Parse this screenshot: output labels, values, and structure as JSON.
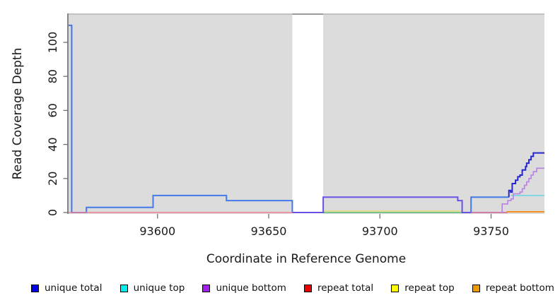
{
  "figure": {
    "bg": "#ffffff",
    "panel_bg": "#dcdcdc",
    "panel_top_line": "#c2c2c2",
    "gap_top_line": "#9b9b9b",
    "axis_line_color": "#444444",
    "tick_color": "#707070",
    "label_color": "#1a1a1a"
  },
  "chart_data": {
    "type": "line",
    "title": "",
    "xlabel": "Coordinate in Reference Genome",
    "ylabel": "Read Coverage Depth",
    "xlim": [
      93560,
      93774
    ],
    "ylim": [
      0,
      117
    ],
    "xticks": [
      93600,
      93650,
      93700,
      93750
    ],
    "yticks": [
      0,
      20,
      40,
      60,
      80,
      100
    ],
    "grid": false,
    "legend_position": "bottom",
    "mask_region": {
      "x0": 93660.6,
      "x1": 93674.5
    },
    "legend": [
      {
        "label": "unique total",
        "color": "#0000EE"
      },
      {
        "label": "unique top",
        "color": "#00EEEE"
      },
      {
        "label": "unique bottom",
        "color": "#A020F0"
      },
      {
        "label": "repeat total",
        "color": "#EE0000"
      },
      {
        "label": "repeat top",
        "color": "#FFFF00"
      },
      {
        "label": "repeat bottom",
        "color": "#EE9A00"
      }
    ],
    "series": [
      {
        "name": "unique-total-left",
        "color": "#4379E8",
        "width": 2,
        "points": [
          [
            93560,
            110
          ],
          [
            93561.4,
            110
          ],
          [
            93561.4,
            0
          ],
          [
            93568,
            0
          ],
          [
            93568,
            3
          ],
          [
            93598,
            3
          ],
          [
            93598,
            10
          ],
          [
            93631,
            10
          ],
          [
            93631,
            7
          ],
          [
            93660.6,
            7
          ],
          [
            93660.6,
            0
          ],
          [
            93675,
            0
          ]
        ]
      },
      {
        "name": "repeat-total-left",
        "color": "#ED8092",
        "width": 1.6,
        "points": [
          [
            93560,
            0
          ],
          [
            93660.6,
            0
          ]
        ]
      },
      {
        "name": "repeat-top-mid",
        "color": "#E6DC7E",
        "width": 1.5,
        "points": [
          [
            93674.5,
            0.9
          ],
          [
            93737,
            0.9
          ]
        ]
      },
      {
        "name": "overlap-baseline-green",
        "color": "#59BD6F",
        "width": 1.6,
        "points": [
          [
            93674.5,
            0
          ],
          [
            93737,
            0
          ]
        ]
      },
      {
        "name": "repeat-total-right",
        "color": "#CC5E93",
        "width": 1.6,
        "points": [
          [
            93737,
            0
          ],
          [
            93757.5,
            0
          ]
        ]
      },
      {
        "name": "unique-bottom-mid",
        "color": "#6A52E8",
        "width": 2,
        "points": [
          [
            93660.6,
            0
          ],
          [
            93674.5,
            0
          ],
          [
            93674.5,
            9
          ],
          [
            93735,
            9
          ],
          [
            93735,
            7
          ],
          [
            93737,
            7
          ],
          [
            93737,
            0
          ],
          [
            93741,
            0
          ]
        ]
      },
      {
        "name": "unique-top-right",
        "color": "#76D6E3",
        "width": 1.8,
        "points": [
          [
            93759,
            10
          ],
          [
            93774,
            10
          ]
        ]
      },
      {
        "name": "unique-total-right-flat",
        "color": "#4379E8",
        "width": 2,
        "points": [
          [
            93741,
            0
          ],
          [
            93741,
            9
          ],
          [
            93758,
            9
          ]
        ]
      },
      {
        "name": "unique-bottom-staircase",
        "color": "#B97FE3",
        "width": 1.6,
        "points": [
          [
            93755,
            0
          ],
          [
            93755,
            5
          ],
          [
            93757.5,
            5
          ],
          [
            93757.5,
            7
          ],
          [
            93759,
            7
          ],
          [
            93759,
            8
          ],
          [
            93760,
            8
          ],
          [
            93760,
            11
          ],
          [
            93763,
            11
          ],
          [
            93763,
            12
          ],
          [
            93764,
            12
          ],
          [
            93764,
            14
          ],
          [
            93765,
            14
          ],
          [
            93765,
            16
          ],
          [
            93766,
            16
          ],
          [
            93766,
            18
          ],
          [
            93767,
            18
          ],
          [
            93767,
            20
          ],
          [
            93768,
            20
          ],
          [
            93768,
            22
          ],
          [
            93769,
            22
          ],
          [
            93769,
            24
          ],
          [
            93770.5,
            24
          ],
          [
            93770.5,
            26
          ],
          [
            93774,
            26
          ]
        ]
      },
      {
        "name": "unique-total-staircase",
        "color": "#2426D2",
        "width": 2,
        "points": [
          [
            93758,
            9
          ],
          [
            93758,
            13
          ],
          [
            93758.8,
            13
          ],
          [
            93758.8,
            12
          ],
          [
            93759.5,
            12
          ],
          [
            93759.5,
            17
          ],
          [
            93761,
            17
          ],
          [
            93761,
            19
          ],
          [
            93762,
            19
          ],
          [
            93762,
            21
          ],
          [
            93763,
            21
          ],
          [
            93763,
            22
          ],
          [
            93764,
            22
          ],
          [
            93764,
            25
          ],
          [
            93765.5,
            25
          ],
          [
            93765.5,
            27
          ],
          [
            93766,
            27
          ],
          [
            93766,
            29
          ],
          [
            93767,
            29
          ],
          [
            93767,
            31
          ],
          [
            93768,
            31
          ],
          [
            93768,
            33
          ],
          [
            93769,
            33
          ],
          [
            93769,
            35
          ],
          [
            93770,
            35
          ],
          [
            93774,
            35
          ]
        ]
      },
      {
        "name": "repeat-bottom-right",
        "color": "#F5921E",
        "width": 2,
        "points": [
          [
            93757,
            0.4
          ],
          [
            93774,
            0.4
          ]
        ]
      }
    ]
  }
}
